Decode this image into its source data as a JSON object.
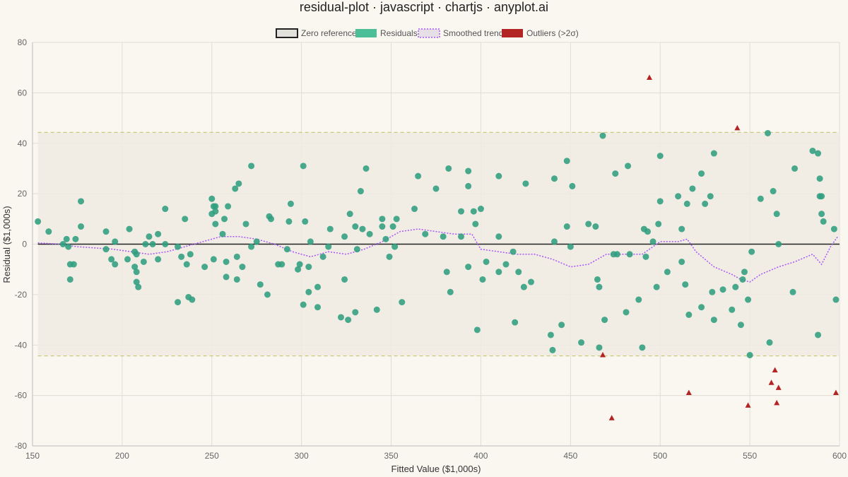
{
  "chart_data": {
    "type": "scatter",
    "title": "residual-plot · javascript · chartjs · anyplot.ai",
    "xlabel": "Fitted Value ($1,000s)",
    "ylabel": "Residual ($1,000s)",
    "xlim": [
      150,
      600
    ],
    "ylim": [
      -80,
      80
    ],
    "x_ticks": [
      150,
      200,
      250,
      300,
      350,
      400,
      450,
      500,
      550,
      600
    ],
    "y_ticks": [
      80,
      60,
      40,
      20,
      0,
      -20,
      -40,
      -60,
      -80
    ],
    "grid": true,
    "legend_position": "top-center",
    "sigma_band": [
      -44.3,
      44.3
    ],
    "legend": [
      {
        "label": "Zero reference",
        "key": "zero"
      },
      {
        "label": "Residuals",
        "key": "residuals"
      },
      {
        "label": "Smoothed trend",
        "key": "trend"
      },
      {
        "label": "Outliers (>2σ)",
        "key": "outliers"
      }
    ],
    "colors": {
      "residuals": "#2f9e7e",
      "residuals_legend": "#4dbf98",
      "trend": "#a855f7",
      "outliers": "#b32424",
      "zero": "#222222",
      "band_fill": "#eeebe3",
      "band_line": "#c9c97a"
    },
    "series": [
      {
        "name": "Residuals",
        "points": [
          [
            153,
            9
          ],
          [
            159,
            5
          ],
          [
            167,
            0
          ],
          [
            169,
            2
          ],
          [
            170,
            -1
          ],
          [
            171,
            -8
          ],
          [
            171,
            -14
          ],
          [
            173,
            -8
          ],
          [
            174,
            2
          ],
          [
            177,
            17
          ],
          [
            177,
            7
          ],
          [
            191,
            5
          ],
          [
            191,
            -2
          ],
          [
            194,
            -6
          ],
          [
            196,
            1
          ],
          [
            196,
            -8
          ],
          [
            203,
            -6
          ],
          [
            204,
            6
          ],
          [
            207,
            -3
          ],
          [
            208,
            -4
          ],
          [
            207,
            -9
          ],
          [
            208,
            -11
          ],
          [
            208,
            -15
          ],
          [
            209,
            -17
          ],
          [
            212,
            -7
          ],
          [
            213,
            0
          ],
          [
            215,
            3
          ],
          [
            217,
            0
          ],
          [
            220,
            4
          ],
          [
            220,
            -6
          ],
          [
            224,
            14
          ],
          [
            224,
            0
          ],
          [
            231,
            -23
          ],
          [
            231,
            -1
          ],
          [
            233,
            -5
          ],
          [
            235,
            10
          ],
          [
            236,
            -8
          ],
          [
            237,
            -21
          ],
          [
            238,
            -4
          ],
          [
            239,
            -22
          ],
          [
            246,
            -9
          ],
          [
            250,
            18
          ],
          [
            250,
            12
          ],
          [
            251,
            -6
          ],
          [
            251,
            15
          ],
          [
            252,
            8
          ],
          [
            252,
            13
          ],
          [
            252,
            15
          ],
          [
            256,
            4
          ],
          [
            257,
            10
          ],
          [
            258,
            -13
          ],
          [
            258,
            -7
          ],
          [
            259,
            15
          ],
          [
            263,
            22
          ],
          [
            264,
            -5
          ],
          [
            264,
            -14
          ],
          [
            265,
            24
          ],
          [
            267,
            -9
          ],
          [
            269,
            8
          ],
          [
            272,
            31
          ],
          [
            272,
            -1
          ],
          [
            275,
            1
          ],
          [
            277,
            -16
          ],
          [
            281,
            -20
          ],
          [
            282,
            11
          ],
          [
            283,
            10
          ],
          [
            287,
            -8
          ],
          [
            289,
            -8
          ],
          [
            292,
            -2
          ],
          [
            293,
            9
          ],
          [
            294,
            16
          ],
          [
            298,
            -10
          ],
          [
            299,
            -8
          ],
          [
            301,
            31
          ],
          [
            301,
            -24
          ],
          [
            302,
            9
          ],
          [
            304,
            -19
          ],
          [
            304,
            -9
          ],
          [
            305,
            1
          ],
          [
            309,
            -25
          ],
          [
            309,
            -17
          ],
          [
            312,
            -5
          ],
          [
            315,
            -1
          ],
          [
            316,
            6
          ],
          [
            322,
            -29
          ],
          [
            324,
            3
          ],
          [
            324,
            -14
          ],
          [
            326,
            -30
          ],
          [
            327,
            12
          ],
          [
            330,
            -27
          ],
          [
            330,
            7
          ],
          [
            331,
            -2
          ],
          [
            333,
            21
          ],
          [
            334,
            6
          ],
          [
            336,
            30
          ],
          [
            338,
            4
          ],
          [
            342,
            -26
          ],
          [
            345,
            10
          ],
          [
            345,
            7
          ],
          [
            347,
            2
          ],
          [
            349,
            -5
          ],
          [
            351,
            7
          ],
          [
            352,
            -1
          ],
          [
            353,
            10
          ],
          [
            356,
            -23
          ],
          [
            363,
            14
          ],
          [
            365,
            27
          ],
          [
            369,
            4
          ],
          [
            375,
            22
          ],
          [
            379,
            3
          ],
          [
            381,
            -11
          ],
          [
            382,
            30
          ],
          [
            383,
            -19
          ],
          [
            389,
            13
          ],
          [
            389,
            3
          ],
          [
            393,
            29
          ],
          [
            393,
            -9
          ],
          [
            393,
            23
          ],
          [
            396,
            13
          ],
          [
            397,
            8
          ],
          [
            398,
            -34
          ],
          [
            400,
            14
          ],
          [
            401,
            -14
          ],
          [
            403,
            -7
          ],
          [
            410,
            27
          ],
          [
            410,
            3
          ],
          [
            410,
            -11
          ],
          [
            414,
            -8
          ],
          [
            418,
            -3
          ],
          [
            419,
            -31
          ],
          [
            421,
            -11
          ],
          [
            424,
            -17
          ],
          [
            425,
            24
          ],
          [
            428,
            -15
          ],
          [
            439,
            -36
          ],
          [
            440,
            -42
          ],
          [
            441,
            1
          ],
          [
            441,
            26
          ],
          [
            445,
            -32
          ],
          [
            448,
            33
          ],
          [
            448,
            7
          ],
          [
            450,
            -1
          ],
          [
            451,
            23
          ],
          [
            456,
            -39
          ],
          [
            460,
            8
          ],
          [
            464,
            7
          ],
          [
            465,
            -14
          ],
          [
            466,
            -17
          ],
          [
            466,
            -41
          ],
          [
            468,
            43
          ],
          [
            469,
            -30
          ],
          [
            474,
            -4
          ],
          [
            475,
            28
          ],
          [
            476,
            -4
          ],
          [
            481,
            -27
          ],
          [
            482,
            31
          ],
          [
            483,
            -4
          ],
          [
            488,
            -22
          ],
          [
            490,
            -41
          ],
          [
            491,
            6
          ],
          [
            492,
            -5
          ],
          [
            493,
            5
          ],
          [
            496,
            1
          ],
          [
            498,
            -17
          ],
          [
            499,
            8
          ],
          [
            500,
            17
          ],
          [
            500,
            35
          ],
          [
            504,
            -11
          ],
          [
            510,
            19
          ],
          [
            512,
            6
          ],
          [
            512,
            -7
          ],
          [
            514,
            -16
          ],
          [
            515,
            16
          ],
          [
            516,
            -28
          ],
          [
            518,
            22
          ],
          [
            523,
            -25
          ],
          [
            523,
            28
          ],
          [
            525,
            16
          ],
          [
            528,
            19
          ],
          [
            529,
            -19
          ],
          [
            530,
            36
          ],
          [
            530,
            -30
          ],
          [
            535,
            -18
          ],
          [
            540,
            -26
          ],
          [
            542,
            -17
          ],
          [
            545,
            -32
          ],
          [
            546,
            -14
          ],
          [
            547,
            -11
          ],
          [
            549,
            -22
          ],
          [
            550,
            -44
          ],
          [
            551,
            -3
          ],
          [
            556,
            18
          ],
          [
            560,
            44
          ],
          [
            561,
            -39
          ],
          [
            563,
            21
          ],
          [
            565,
            12
          ],
          [
            566,
            0
          ],
          [
            574,
            -19
          ],
          [
            575,
            30
          ],
          [
            585,
            37
          ],
          [
            588,
            36
          ],
          [
            588,
            -36
          ],
          [
            589,
            19
          ],
          [
            589,
            26
          ],
          [
            590,
            12
          ],
          [
            590,
            19
          ],
          [
            591,
            9
          ],
          [
            597,
            6
          ],
          [
            598,
            -22
          ]
        ]
      },
      {
        "name": "Outliers (>2σ)",
        "points": [
          [
            494,
            66
          ],
          [
            543,
            46
          ],
          [
            468,
            -44
          ],
          [
            473,
            -69
          ],
          [
            516,
            -59
          ],
          [
            549,
            -64
          ],
          [
            562,
            -55
          ],
          [
            564,
            -50
          ],
          [
            565,
            -63
          ],
          [
            566,
            -57
          ],
          [
            598,
            -59
          ]
        ]
      },
      {
        "name": "Smoothed trend",
        "points": [
          [
            153,
            0.5
          ],
          [
            165,
            0
          ],
          [
            175,
            -1
          ],
          [
            185,
            -1.5
          ],
          [
            195,
            -2
          ],
          [
            205,
            -3
          ],
          [
            215,
            -4
          ],
          [
            225,
            -3
          ],
          [
            235,
            -1
          ],
          [
            245,
            1
          ],
          [
            255,
            3
          ],
          [
            265,
            3
          ],
          [
            275,
            2
          ],
          [
            285,
            0
          ],
          [
            295,
            -3
          ],
          [
            305,
            -5
          ],
          [
            315,
            -3
          ],
          [
            325,
            -4
          ],
          [
            335,
            -2
          ],
          [
            345,
            1
          ],
          [
            355,
            5
          ],
          [
            365,
            6
          ],
          [
            375,
            5
          ],
          [
            385,
            4
          ],
          [
            395,
            4
          ],
          [
            400,
            -2
          ],
          [
            410,
            -3
          ],
          [
            420,
            -4
          ],
          [
            430,
            -4
          ],
          [
            440,
            -6
          ],
          [
            450,
            -9
          ],
          [
            460,
            -8
          ],
          [
            470,
            -4
          ],
          [
            480,
            -4
          ],
          [
            490,
            -4
          ],
          [
            500,
            1
          ],
          [
            510,
            1
          ],
          [
            515,
            2
          ],
          [
            520,
            -3
          ],
          [
            530,
            -9
          ],
          [
            540,
            -12
          ],
          [
            545,
            -14
          ],
          [
            550,
            -15
          ],
          [
            556,
            -12
          ],
          [
            566,
            -9
          ],
          [
            575,
            -7
          ],
          [
            585,
            -4
          ],
          [
            590,
            -8
          ],
          [
            595,
            -1
          ],
          [
            599,
            3
          ]
        ]
      }
    ]
  }
}
